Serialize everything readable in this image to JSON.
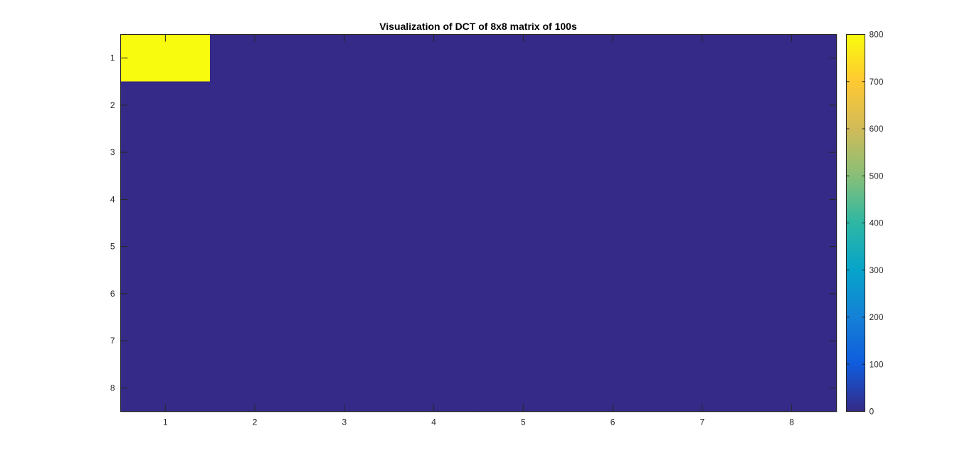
{
  "chart_data": {
    "type": "heatmap",
    "title": "Visualization of DCT of 8x8 matrix of 100s",
    "xlabel": "",
    "ylabel": "",
    "x_ticks": [
      "1",
      "2",
      "3",
      "4",
      "5",
      "6",
      "7",
      "8"
    ],
    "y_ticks": [
      "1",
      "2",
      "3",
      "4",
      "5",
      "6",
      "7",
      "8"
    ],
    "matrix": [
      [
        800,
        0,
        0,
        0,
        0,
        0,
        0,
        0
      ],
      [
        0,
        0,
        0,
        0,
        0,
        0,
        0,
        0
      ],
      [
        0,
        0,
        0,
        0,
        0,
        0,
        0,
        0
      ],
      [
        0,
        0,
        0,
        0,
        0,
        0,
        0,
        0
      ],
      [
        0,
        0,
        0,
        0,
        0,
        0,
        0,
        0
      ],
      [
        0,
        0,
        0,
        0,
        0,
        0,
        0,
        0
      ],
      [
        0,
        0,
        0,
        0,
        0,
        0,
        0,
        0
      ],
      [
        0,
        0,
        0,
        0,
        0,
        0,
        0,
        0
      ]
    ],
    "clim": [
      0,
      800
    ],
    "colormap": "parula",
    "colorbar_ticks": [
      "0",
      "100",
      "200",
      "300",
      "400",
      "500",
      "600",
      "700",
      "800"
    ],
    "colorbar_tick_values": [
      0,
      100,
      200,
      300,
      400,
      500,
      600,
      700,
      800
    ],
    "colorbar_position": "right",
    "grid": false
  }
}
